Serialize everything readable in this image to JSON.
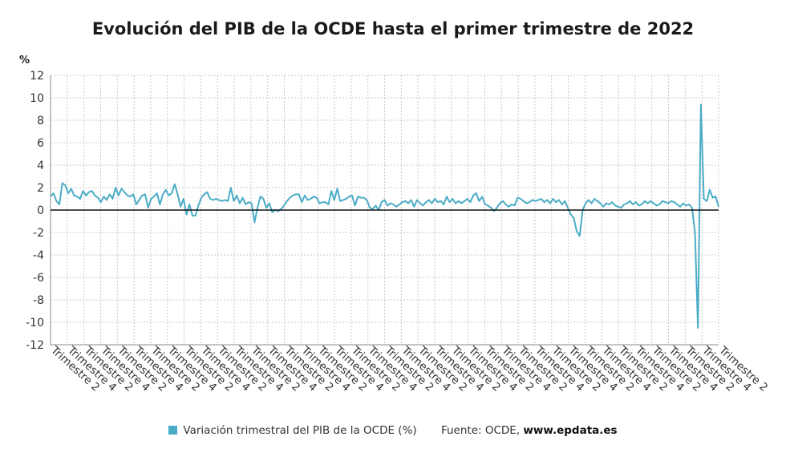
{
  "title": "Evolución del PIB de la OCDE hasta el primer trimestre de 2022",
  "unit_label": "%",
  "legend": {
    "series_name": "Variación trimestral del PIB de la OCDE (%)",
    "color": "#4bacc6"
  },
  "source": {
    "prefix": "Fuente: OCDE,",
    "site": "www.epdata.es"
  },
  "chart_data": {
    "type": "line",
    "title": "Evolución del PIB de la OCDE hasta el primer trimestre de 2022",
    "ylabel": "%",
    "ylim": [
      -12,
      12
    ],
    "yticks": [
      -12,
      -10,
      -8,
      -6,
      -4,
      -2,
      0,
      2,
      4,
      6,
      8,
      10,
      12
    ],
    "grid": true,
    "legend_position": "bottom",
    "x_tick_labels": [
      "Trimestre 2",
      "Trimestre 4"
    ],
    "x_tick_count": 41,
    "series": [
      {
        "name": "Variación trimestral del PIB de la OCDE (%)",
        "color": "#4bacc6",
        "values": [
          1.2,
          1.5,
          0.8,
          0.5,
          2.4,
          2.2,
          1.5,
          1.9,
          1.3,
          1.2,
          1.0,
          1.7,
          1.3,
          1.6,
          1.7,
          1.3,
          1.1,
          0.7,
          1.2,
          0.9,
          1.4,
          1.0,
          2.0,
          1.3,
          1.9,
          1.6,
          1.3,
          1.2,
          1.4,
          0.5,
          0.9,
          1.3,
          1.4,
          0.2,
          1.0,
          1.2,
          1.5,
          0.5,
          1.4,
          1.8,
          1.3,
          1.5,
          2.3,
          1.4,
          0.3,
          1.0,
          -0.4,
          0.5,
          -0.5,
          -0.5,
          0.4,
          1.1,
          1.4,
          1.6,
          1.0,
          0.9,
          1.0,
          0.9,
          0.8,
          0.9,
          0.8,
          2.0,
          0.8,
          1.3,
          0.6,
          1.1,
          0.5,
          0.7,
          0.6,
          -1.1,
          0.2,
          1.2,
          1.0,
          0.2,
          0.6,
          -0.2,
          0.0,
          -0.1,
          0.1,
          0.4,
          0.8,
          1.1,
          1.3,
          1.4,
          1.4,
          0.7,
          1.3,
          0.9,
          1.0,
          1.2,
          1.1,
          0.6,
          0.7,
          0.7,
          0.5,
          1.7,
          0.9,
          1.9,
          0.8,
          0.9,
          1.0,
          1.2,
          1.3,
          0.4,
          1.2,
          1.1,
          1.1,
          0.9,
          0.2,
          0.1,
          0.4,
          0.0,
          0.7,
          0.9,
          0.4,
          0.6,
          0.5,
          0.3,
          0.5,
          0.7,
          0.8,
          0.6,
          0.9,
          0.3,
          0.9,
          0.6,
          0.4,
          0.7,
          0.9,
          0.6,
          1.0,
          0.7,
          0.8,
          0.5,
          1.2,
          0.7,
          1.0,
          0.6,
          0.8,
          0.6,
          0.8,
          1.0,
          0.7,
          1.3,
          1.5,
          0.8,
          1.2,
          0.5,
          0.4,
          0.2,
          -0.1,
          0.2,
          0.6,
          0.8,
          0.5,
          0.3,
          0.5,
          0.4,
          1.1,
          1.0,
          0.8,
          0.6,
          0.7,
          0.9,
          0.8,
          0.9,
          1.0,
          0.7,
          0.9,
          0.6,
          1.0,
          0.7,
          0.9,
          0.5,
          0.8,
          0.2,
          -0.4,
          -0.7,
          -1.9,
          -2.3,
          0.0,
          0.6,
          0.9,
          0.6,
          1.0,
          0.8,
          0.6,
          0.3,
          0.6,
          0.5,
          0.7,
          0.4,
          0.3,
          0.2,
          0.5,
          0.6,
          0.8,
          0.5,
          0.7,
          0.4,
          0.5,
          0.8,
          0.6,
          0.8,
          0.6,
          0.4,
          0.5,
          0.8,
          0.7,
          0.6,
          0.8,
          0.7,
          0.5,
          0.3,
          0.6,
          0.4,
          0.5,
          0.2,
          -2.0,
          -10.5,
          9.4,
          1.0,
          0.8,
          1.8,
          1.1,
          1.2,
          0.3
        ]
      }
    ]
  }
}
